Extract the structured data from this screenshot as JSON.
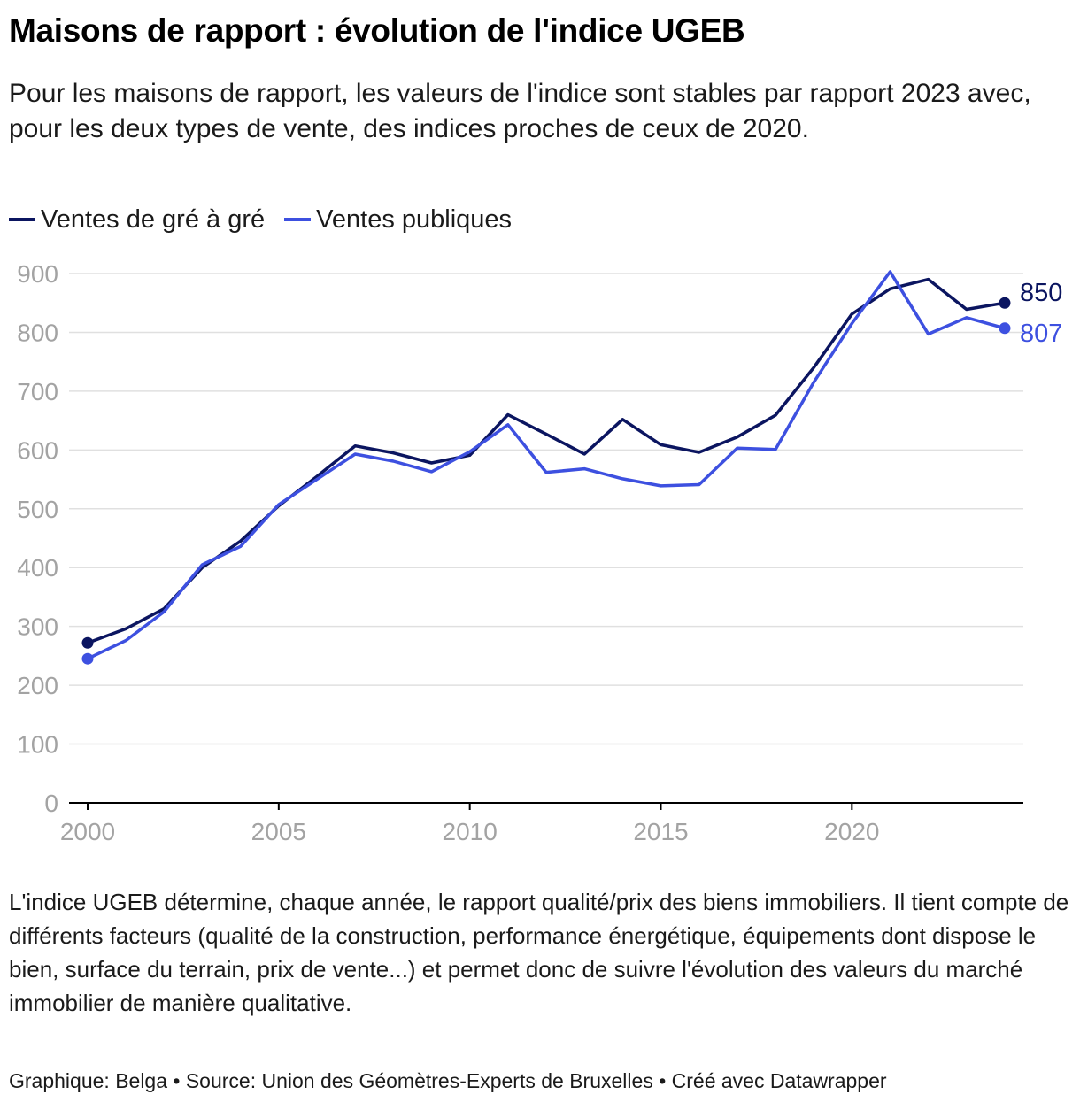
{
  "header": {
    "title": "Maisons de rapport : évolution de l'indice UGEB",
    "subtitle": "Pour les maisons de rapport, les valeurs de l'indice sont stables par rapport 2023 avec, pour les deux types de vente, des indices proches de ceux de 2020."
  },
  "chart_data": {
    "type": "line",
    "x": [
      2000,
      2001,
      2002,
      2003,
      2004,
      2005,
      2006,
      2007,
      2008,
      2009,
      2010,
      2011,
      2012,
      2013,
      2014,
      2015,
      2016,
      2017,
      2018,
      2019,
      2020,
      2021,
      2022,
      2023,
      2024
    ],
    "series": [
      {
        "name": "Ventes de gré à gré",
        "color": "#0b1560",
        "values": [
          272,
          296,
          330,
          400,
          445,
          505,
          555,
          607,
          595,
          578,
          591,
          660,
          627,
          593,
          652,
          609,
          596,
          622,
          659,
          740,
          831,
          874,
          890,
          839,
          850
        ],
        "end_label": "850"
      },
      {
        "name": "Ventes publiques",
        "color": "#3d50e0",
        "values": [
          245,
          276,
          325,
          405,
          436,
          507,
          550,
          593,
          581,
          563,
          597,
          643,
          562,
          568,
          551,
          539,
          541,
          603,
          601,
          715,
          815,
          903,
          797,
          825,
          807
        ],
        "end_label": "807"
      }
    ],
    "xlabel": "",
    "ylabel": "",
    "ylim": [
      0,
      900
    ],
    "yticks": [
      0,
      100,
      200,
      300,
      400,
      500,
      600,
      700,
      800,
      900
    ],
    "xticks": [
      2000,
      2005,
      2010,
      2015,
      2020
    ],
    "grid": true,
    "legend_position": "top-left"
  },
  "notes": "L'indice UGEB détermine, chaque année, le rapport qualité/prix des biens immobiliers. Il tient compte de différents facteurs (qualité de la construction, performance énergétique, équipements dont dispose le bien, surface du terrain, prix de vente...) et permet donc de suivre l'évolution des valeurs du marché immobilier de manière qualitative.",
  "footer": "Graphique: Belga • Source: Union des Géomètres-Experts de Bruxelles • Créé avec Datawrapper",
  "colors": {
    "gridline": "#e0e0e0",
    "tick_label": "#a3a3a3",
    "axis": "#000000"
  }
}
